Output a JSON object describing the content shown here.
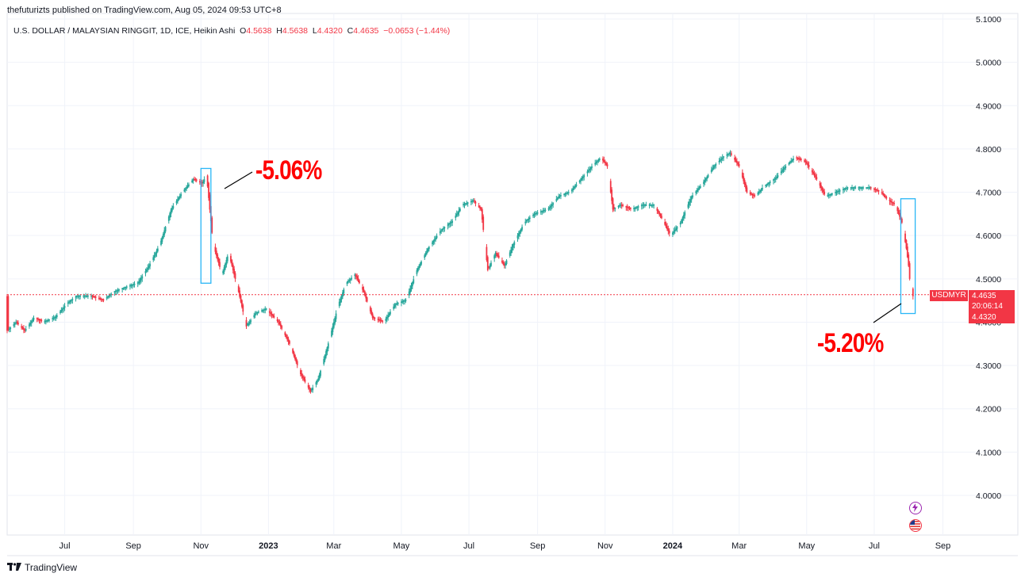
{
  "header": {
    "publisher_line": "thefuturizts published on TradingView.com, Aug 05, 2024 09:53 UTC+8",
    "symbol_desc": "U.S. DOLLAR / MALAYSIAN RINGGIT, 1D, ICE, Heikin Ashi",
    "o_label": "O",
    "o_value": "4.5638",
    "h_label": "H",
    "h_value": "4.5638",
    "l_label": "L",
    "l_value": "4.4320",
    "c_label": "C",
    "c_value": "4.4635",
    "change": "−0.0653 (−1.44%)"
  },
  "price_labels": {
    "symbol": "USDMYR",
    "last": "4.4635",
    "countdown": "20:06:14",
    "low": "4.4320"
  },
  "annotations": {
    "first_drop": "-5.06%",
    "second_drop": "-5.20%"
  },
  "footer": {
    "brand": "TradingView"
  },
  "icons": {
    "bolt": "lightning-icon",
    "flag": "us-flag-icon"
  },
  "colors": {
    "up": "#26a69a",
    "down": "#f23645",
    "highlight_box": "#29b6f6",
    "annotation": "#ff0000"
  },
  "chart_data": {
    "type": "candlestick",
    "chart_style": "Heikin Ashi",
    "interval": "1D",
    "title": "",
    "xlabel": "",
    "ylabel": "",
    "ylim": [
      3.9,
      5.1
    ],
    "grid": true,
    "y_ticks": [
      "5.1000",
      "5.0000",
      "4.9000",
      "4.8000",
      "4.7000",
      "4.6000",
      "4.5000",
      "4.4000",
      "4.3000",
      "4.2000",
      "4.1000",
      "4.0000"
    ],
    "x_ticks": [
      {
        "label": "Jul",
        "date": "2022-07-01",
        "bold": false
      },
      {
        "label": "Sep",
        "date": "2022-09-01",
        "bold": false
      },
      {
        "label": "Nov",
        "date": "2022-11-01",
        "bold": false
      },
      {
        "label": "2023",
        "date": "2023-01-01",
        "bold": true
      },
      {
        "label": "Mar",
        "date": "2023-03-01",
        "bold": false
      },
      {
        "label": "May",
        "date": "2023-05-01",
        "bold": false
      },
      {
        "label": "Jul",
        "date": "2023-07-01",
        "bold": false
      },
      {
        "label": "Sep",
        "date": "2023-09-01",
        "bold": false
      },
      {
        "label": "Nov",
        "date": "2023-11-01",
        "bold": false
      },
      {
        "label": "2024",
        "date": "2024-01-01",
        "bold": true
      },
      {
        "label": "Mar",
        "date": "2024-03-01",
        "bold": false
      },
      {
        "label": "May",
        "date": "2024-05-01",
        "bold": false
      },
      {
        "label": "Jul",
        "date": "2024-07-01",
        "bold": false
      },
      {
        "label": "Sep",
        "date": "2024-09-01",
        "bold": false
      }
    ],
    "x_range": [
      "2022-05-10",
      "2024-09-25"
    ],
    "last_price": 4.4635,
    "series": [
      {
        "name": "USDMYR",
        "path": [
          [
            "2022-05-10",
            4.38
          ],
          [
            "2022-05-18",
            4.4
          ],
          [
            "2022-05-26",
            4.38
          ],
          [
            "2022-06-03",
            4.41
          ],
          [
            "2022-06-12",
            4.4
          ],
          [
            "2022-06-22",
            4.41
          ],
          [
            "2022-07-02",
            4.44
          ],
          [
            "2022-07-12",
            4.46
          ],
          [
            "2022-07-25",
            4.46
          ],
          [
            "2022-08-05",
            4.45
          ],
          [
            "2022-08-15",
            4.47
          ],
          [
            "2022-08-25",
            4.48
          ],
          [
            "2022-09-05",
            4.49
          ],
          [
            "2022-09-15",
            4.53
          ],
          [
            "2022-09-25",
            4.58
          ],
          [
            "2022-10-05",
            4.66
          ],
          [
            "2022-10-15",
            4.7
          ],
          [
            "2022-10-25",
            4.73
          ],
          [
            "2022-11-02",
            4.72
          ],
          [
            "2022-11-06",
            4.74
          ],
          [
            "2022-11-12",
            4.58
          ],
          [
            "2022-11-20",
            4.51
          ],
          [
            "2022-11-26",
            4.56
          ],
          [
            "2022-12-05",
            4.47
          ],
          [
            "2022-12-12",
            4.39
          ],
          [
            "2022-12-20",
            4.42
          ],
          [
            "2022-12-30",
            4.43
          ],
          [
            "2023-01-10",
            4.4
          ],
          [
            "2023-01-20",
            4.35
          ],
          [
            "2023-01-30",
            4.28
          ],
          [
            "2023-02-08",
            4.24
          ],
          [
            "2023-02-15",
            4.27
          ],
          [
            "2023-02-25",
            4.36
          ],
          [
            "2023-03-05",
            4.44
          ],
          [
            "2023-03-12",
            4.49
          ],
          [
            "2023-03-20",
            4.51
          ],
          [
            "2023-03-28",
            4.47
          ],
          [
            "2023-04-05",
            4.41
          ],
          [
            "2023-04-15",
            4.4
          ],
          [
            "2023-04-25",
            4.44
          ],
          [
            "2023-05-05",
            4.45
          ],
          [
            "2023-05-15",
            4.52
          ],
          [
            "2023-05-25",
            4.57
          ],
          [
            "2023-06-05",
            4.61
          ],
          [
            "2023-06-15",
            4.63
          ],
          [
            "2023-06-25",
            4.67
          ],
          [
            "2023-07-05",
            4.68
          ],
          [
            "2023-07-12",
            4.66
          ],
          [
            "2023-07-18",
            4.52
          ],
          [
            "2023-07-25",
            4.56
          ],
          [
            "2023-08-02",
            4.53
          ],
          [
            "2023-08-10",
            4.58
          ],
          [
            "2023-08-20",
            4.63
          ],
          [
            "2023-08-30",
            4.65
          ],
          [
            "2023-09-10",
            4.66
          ],
          [
            "2023-09-20",
            4.69
          ],
          [
            "2023-09-30",
            4.7
          ],
          [
            "2023-10-10",
            4.73
          ],
          [
            "2023-10-20",
            4.76
          ],
          [
            "2023-10-28",
            4.78
          ],
          [
            "2023-11-03",
            4.76
          ],
          [
            "2023-11-08",
            4.66
          ],
          [
            "2023-11-15",
            4.67
          ],
          [
            "2023-11-25",
            4.66
          ],
          [
            "2023-12-05",
            4.67
          ],
          [
            "2023-12-15",
            4.67
          ],
          [
            "2023-12-22",
            4.64
          ],
          [
            "2023-12-30",
            4.6
          ],
          [
            "2024-01-08",
            4.63
          ],
          [
            "2024-01-18",
            4.69
          ],
          [
            "2024-01-28",
            4.72
          ],
          [
            "2024-02-07",
            4.76
          ],
          [
            "2024-02-15",
            4.78
          ],
          [
            "2024-02-22",
            4.79
          ],
          [
            "2024-03-01",
            4.76
          ],
          [
            "2024-03-08",
            4.7
          ],
          [
            "2024-03-15",
            4.69
          ],
          [
            "2024-03-22",
            4.71
          ],
          [
            "2024-04-02",
            4.73
          ],
          [
            "2024-04-12",
            4.76
          ],
          [
            "2024-04-20",
            4.78
          ],
          [
            "2024-04-30",
            4.77
          ],
          [
            "2024-05-10",
            4.73
          ],
          [
            "2024-05-18",
            4.69
          ],
          [
            "2024-05-28",
            4.7
          ],
          [
            "2024-06-07",
            4.71
          ],
          [
            "2024-06-17",
            4.71
          ],
          [
            "2024-06-27",
            4.71
          ],
          [
            "2024-07-07",
            4.7
          ],
          [
            "2024-07-14",
            4.68
          ],
          [
            "2024-07-20",
            4.67
          ],
          [
            "2024-07-26",
            4.63
          ],
          [
            "2024-07-30",
            4.57
          ],
          [
            "2024-08-01",
            4.53
          ],
          [
            "2024-08-02",
            4.5
          ],
          [
            "2024-08-05",
            4.46
          ]
        ]
      }
    ],
    "highlight_boxes": [
      {
        "start": "2022-11-01",
        "end": "2022-11-10",
        "top": 4.755,
        "bottom": 4.49
      },
      {
        "start": "2024-07-25",
        "end": "2024-08-07",
        "top": 4.685,
        "bottom": 4.42
      }
    ]
  }
}
